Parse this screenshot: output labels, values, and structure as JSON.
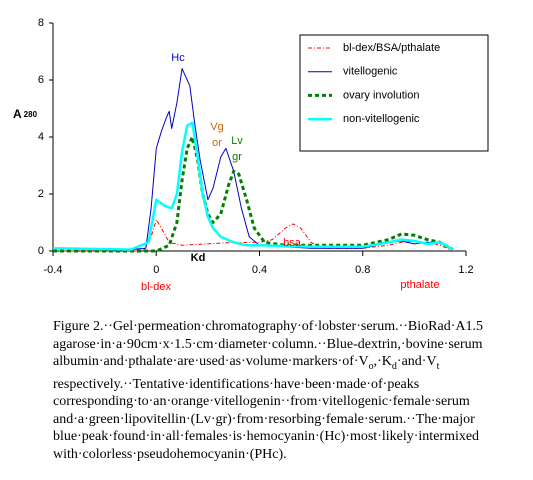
{
  "chart_data": {
    "type": "line",
    "ylabel": "A",
    "ylabel_sub": "280",
    "xlabel": "Kd",
    "xlim": [
      -0.4,
      1.2
    ],
    "xticks": [
      -0.4,
      0,
      0.4,
      0.8,
      1.2
    ],
    "ylim": [
      0,
      8
    ],
    "yticks": [
      0,
      2,
      4,
      6,
      8
    ],
    "grid": false,
    "legend": "upper right",
    "series": [
      {
        "name": "bl-dex/BSA/pthalate",
        "color": "#ff0000",
        "style": "dashdot",
        "x": [
          -0.4,
          -0.05,
          -0.02,
          0,
          0.02,
          0.05,
          0.1,
          0.3,
          0.4,
          0.45,
          0.5,
          0.53,
          0.56,
          0.6,
          0.65,
          0.8,
          0.9,
          0.95,
          1.0,
          1.05,
          1.1,
          1.15
        ],
        "values": [
          0,
          0,
          0.5,
          1.1,
          0.8,
          0.3,
          0.2,
          0.3,
          0.3,
          0.4,
          0.8,
          0.95,
          0.8,
          0.3,
          0.1,
          0.1,
          0.2,
          0.3,
          0.35,
          0.3,
          0.2,
          0
        ]
      },
      {
        "name": "vitellogenic",
        "color": "#0000cc",
        "style": "solid",
        "x": [
          -0.4,
          -0.1,
          -0.04,
          -0.02,
          0,
          0.02,
          0.04,
          0.05,
          0.06,
          0.08,
          0.1,
          0.11,
          0.13,
          0.15,
          0.17,
          0.2,
          0.22,
          0.25,
          0.27,
          0.3,
          0.33,
          0.36,
          0.4,
          0.6,
          0.8,
          0.9,
          0.95,
          1.0,
          1.05,
          1.1,
          1.15
        ],
        "values": [
          0.1,
          0.05,
          0.1,
          1.5,
          3.6,
          4.2,
          4.7,
          4.9,
          4.3,
          5.2,
          6.4,
          6.2,
          5.8,
          4.4,
          3.2,
          1.8,
          2.2,
          3.3,
          3.6,
          2.8,
          1.5,
          0.5,
          0.2,
          0.1,
          0.1,
          0.3,
          0.35,
          0.25,
          0.3,
          0.3,
          0.05
        ]
      },
      {
        "name": "ovary involution",
        "color": "#008000",
        "style": "dashed",
        "x": [
          -0.4,
          0,
          0.05,
          0.08,
          0.1,
          0.12,
          0.14,
          0.16,
          0.18,
          0.2,
          0.22,
          0.25,
          0.28,
          0.3,
          0.32,
          0.35,
          0.38,
          0.42,
          0.5,
          0.8,
          0.9,
          0.95,
          1.0,
          1.05,
          1.1,
          1.15
        ],
        "values": [
          0,
          0,
          0.2,
          1.0,
          2.5,
          3.6,
          4.0,
          3.2,
          2.0,
          1.3,
          1.0,
          1.3,
          2.3,
          2.8,
          2.7,
          1.8,
          0.8,
          0.3,
          0.2,
          0.2,
          0.4,
          0.6,
          0.55,
          0.4,
          0.3,
          0.05
        ]
      },
      {
        "name": "non-vitellogenic",
        "color": "#00ffff",
        "style": "thick",
        "x": [
          -0.4,
          -0.1,
          -0.03,
          0,
          0.03,
          0.06,
          0.08,
          0.1,
          0.12,
          0.14,
          0.16,
          0.18,
          0.2,
          0.22,
          0.25,
          0.3,
          0.35,
          0.4,
          0.6,
          0.8,
          0.9,
          0.95,
          1.0,
          1.05,
          1.1,
          1.15
        ],
        "values": [
          0.1,
          0.05,
          0.3,
          1.8,
          1.6,
          1.5,
          2.0,
          3.5,
          4.4,
          4.5,
          3.3,
          2.0,
          1.2,
          0.8,
          0.5,
          0.3,
          0.2,
          0.2,
          0.15,
          0.15,
          0.3,
          0.4,
          0.35,
          0.25,
          0.3,
          0.05
        ]
      }
    ],
    "annotations": [
      {
        "text": "Hc",
        "color": "#0000cc"
      },
      {
        "text": "Vg",
        "color": "#cc6600"
      },
      {
        "text": "or",
        "color": "#cc6600"
      },
      {
        "text": "Lv",
        "color": "#008000"
      },
      {
        "text": "gr",
        "color": "#008000"
      },
      {
        "text": "bsa",
        "color": "#ff0000"
      },
      {
        "text": "bl-dex",
        "color": "#ff0000"
      },
      {
        "text": "pthalate",
        "color": "#ff0000"
      }
    ]
  },
  "caption": {
    "lines": [
      [
        {
          "text": "Figure 2.··Gel·permeation·chromatography·of·lobster·serum.··BioRad·A1.5"
        }
      ],
      [
        {
          "text": "agarose·in·a·90cm·x·1.5·cm·diameter·column.··Blue-dextrin,·bovine·serum"
        }
      ],
      [
        {
          "text": "albumin·and·pthalate·are·used·as·volume·markers·of·V"
        },
        {
          "text": "o",
          "sub": true
        },
        {
          "text": ",·K"
        },
        {
          "text": "d",
          "sub": true
        },
        {
          "text": "·and·V"
        },
        {
          "text": "t",
          "sub": true
        }
      ],
      [
        {
          "text": "respectively.··Tentative·identifications·have·been·made·of·peaks"
        }
      ],
      [
        {
          "text": "corresponding·to·an·orange·vitellogenin··from·vitellogenic·female·serum"
        }
      ],
      [
        {
          "text": "and·a·green·lipovitellin·(Lv·gr)·from·resorbing·female·serum.··The·major"
        }
      ],
      [
        {
          "text": "blue·peak·found·in·all·females·is·hemocyanin·(Hc)·most·likely·intermixed"
        }
      ],
      [
        {
          "text": "with·colorless·pseudohemocyanin·(PHc)."
        }
      ]
    ]
  }
}
